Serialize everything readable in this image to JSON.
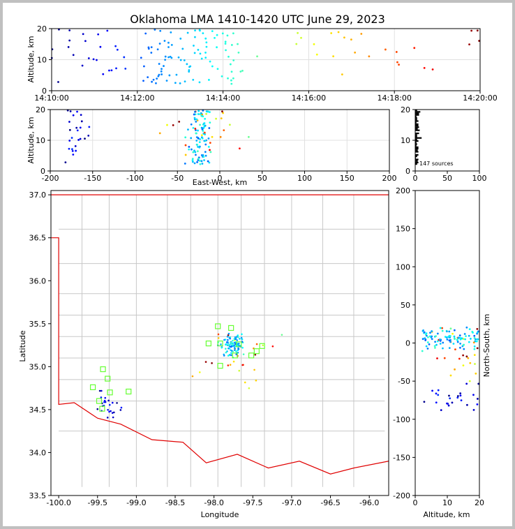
{
  "title": "Oklahoma LMA 1410-1420 UTC June 29, 2023",
  "colors": {
    "figure_background": "#ffffff",
    "window_frame": "#c0c0c0",
    "county_lines": "#c8c8c8",
    "state_border": "#e00000",
    "network_stations": "#66ff33",
    "grid": "#e0e0e0"
  },
  "chart_data": [
    {
      "id": "alt-time",
      "type": "scatter",
      "title": "",
      "xlabel": "",
      "ylabel": "Altitude, km",
      "xlim": [
        "14:10:00",
        "14:20:00"
      ],
      "ylim": [
        0,
        20
      ],
      "xticks": [
        "14:10:00",
        "14:12:00",
        "14:14:00",
        "14:16:00",
        "14:18:00",
        "14:20:00"
      ],
      "yticks": [
        0,
        10,
        20
      ],
      "grid": true,
      "point_color_encodes": "time (blue early → red late)",
      "points_shown": "approximate sample of 147 sources"
    },
    {
      "id": "ew-alt",
      "type": "scatter",
      "xlabel": "East-West, km",
      "ylabel": "Altitude, km",
      "xlim": [
        -200,
        200
      ],
      "ylim": [
        0,
        20
      ],
      "xticks": [
        -200,
        -150,
        -100,
        -50,
        0,
        50,
        100,
        150,
        200
      ],
      "yticks": [
        0,
        10,
        20
      ],
      "grid": true
    },
    {
      "id": "alt-hist",
      "type": "bar",
      "xlim": [
        0,
        100
      ],
      "ylim": [
        0,
        20
      ],
      "xticks": [
        0,
        50,
        100
      ],
      "yticks": [
        0,
        10,
        20
      ],
      "annotation": "147 sources"
    },
    {
      "id": "plan-view",
      "type": "scatter",
      "xlabel": "Longitude",
      "ylabel": "Latitude",
      "xlim": [
        -100.1,
        -95.75
      ],
      "ylim": [
        33.5,
        37.05
      ],
      "xticks": [
        -100.0,
        -99.5,
        -99.0,
        -98.5,
        -98.0,
        -97.5,
        -97.0,
        -96.5,
        -96.0
      ],
      "xtick_labels": [
        "-100.0",
        "-99.5",
        "-99.0",
        "-98.5",
        "-98.0",
        "-97.5",
        "-97.0",
        "-96.5",
        "-96.0"
      ],
      "yticks": [
        33.5,
        34.0,
        34.5,
        35.0,
        35.5,
        36.0,
        36.5,
        37.0
      ],
      "ytick_labels": [
        "33.5",
        "34.0",
        "34.5",
        "35.0",
        "35.5",
        "36.0",
        "36.5",
        "37.0"
      ],
      "stations": [
        [
          -97.95,
          35.47
        ],
        [
          -97.78,
          35.45
        ],
        [
          -98.07,
          35.27
        ],
        [
          -97.92,
          35.27
        ],
        [
          -97.68,
          35.26
        ],
        [
          -97.38,
          35.24
        ],
        [
          -97.45,
          35.18
        ],
        [
          -97.52,
          35.13
        ],
        [
          -97.73,
          35.13
        ],
        [
          -97.92,
          35.01
        ],
        [
          -99.43,
          34.97
        ],
        [
          -99.37,
          34.86
        ],
        [
          -99.56,
          34.76
        ],
        [
          -99.34,
          34.7
        ],
        [
          -99.1,
          34.71
        ],
        [
          -99.48,
          34.6
        ],
        [
          -99.44,
          34.51
        ]
      ]
    },
    {
      "id": "ns-alt",
      "type": "scatter",
      "xlabel": "Altitude, km",
      "ylabel": "North-South, km",
      "xlim": [
        0,
        20
      ],
      "ylim": [
        -200,
        200
      ],
      "xticks": [
        0,
        10,
        20
      ],
      "yticks": [
        -200,
        -150,
        -100,
        -50,
        0,
        50,
        100,
        150,
        200
      ],
      "grid": false
    }
  ]
}
